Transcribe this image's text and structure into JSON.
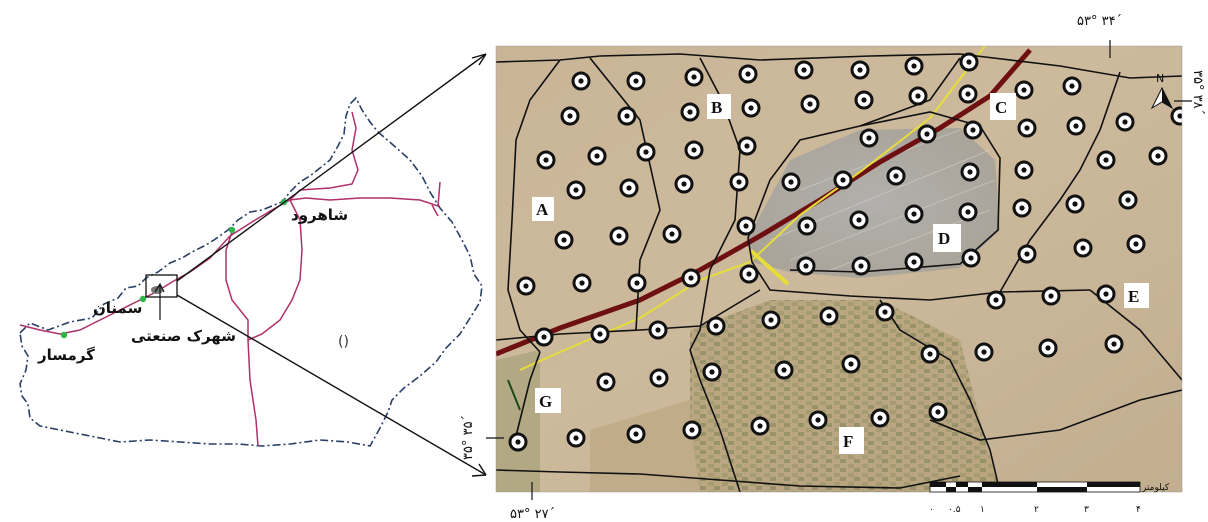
{
  "left_map": {
    "cities": [
      {
        "id": "shahrood",
        "label": "شاهرود"
      },
      {
        "id": "semnan",
        "label": "سمنان"
      },
      {
        "id": "garmsar",
        "label": "گرمسار"
      },
      {
        "id": "industrial",
        "label": "شهرک صنعتی"
      }
    ],
    "lake_symbol": "()",
    "colors": {
      "border": "#2a3f66",
      "road": "#b0306a",
      "city_marker": "#2fb64a"
    }
  },
  "right_map": {
    "zones": [
      "A",
      "B",
      "C",
      "D",
      "E",
      "F",
      "G"
    ],
    "coords": {
      "top_lon": "۵۳° ۳۴´",
      "right_lat": "۳۵° ۳۸´",
      "left_lat": "۳۵° ۳۵´",
      "bottom_lon": "۵۳° ۲۷´"
    },
    "north": "N",
    "scale": {
      "unit": "کیلومتر",
      "ticks": [
        "۰",
        "۰.۵",
        "۱",
        "۲",
        "۳",
        "۴"
      ]
    },
    "colors": {
      "highway": "#6e1012",
      "road_yellow": "#e6dd3a",
      "zone_border": "#111111"
    }
  }
}
